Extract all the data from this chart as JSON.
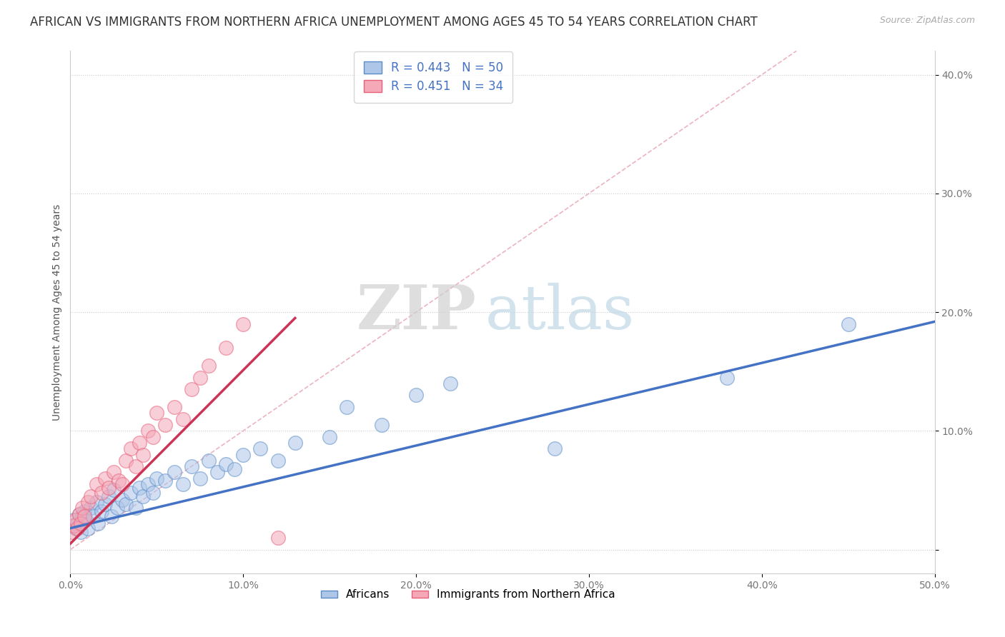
{
  "title": "AFRICAN VS IMMIGRANTS FROM NORTHERN AFRICA UNEMPLOYMENT AMONG AGES 45 TO 54 YEARS CORRELATION CHART",
  "source": "Source: ZipAtlas.com",
  "ylabel": "Unemployment Among Ages 45 to 54 years",
  "xlim": [
    0.0,
    0.5
  ],
  "ylim": [
    -0.02,
    0.42
  ],
  "xticks": [
    0.0,
    0.1,
    0.2,
    0.3,
    0.4,
    0.5
  ],
  "yticks": [
    0.0,
    0.1,
    0.2,
    0.3,
    0.4
  ],
  "xticklabels": [
    "0.0%",
    "10.0%",
    "20.0%",
    "30.0%",
    "40.0%",
    "50.0%"
  ],
  "yticklabels": [
    "",
    "10.0%",
    "20.0%",
    "30.0%",
    "40.0%"
  ],
  "legend1_label": "R = 0.443   N = 50",
  "legend2_label": "R = 0.451   N = 34",
  "legend1_color": "#aec6e8",
  "legend2_color": "#f4a8b8",
  "background_color": "#ffffff",
  "watermark_zip": "ZIP",
  "watermark_atlas": "atlas",
  "blue_color": "#aec6e8",
  "pink_color": "#f4a8b8",
  "blue_edge_color": "#5b8dc8",
  "pink_edge_color": "#e8607a",
  "blue_line_color": "#4472c4",
  "pink_line_color": "#cc3355",
  "diag_line_color": "#e8a0b0",
  "blue_scatter_x": [
    0.001,
    0.002,
    0.003,
    0.004,
    0.005,
    0.006,
    0.007,
    0.008,
    0.009,
    0.01,
    0.012,
    0.013,
    0.015,
    0.016,
    0.018,
    0.02,
    0.022,
    0.024,
    0.025,
    0.027,
    0.03,
    0.032,
    0.035,
    0.038,
    0.04,
    0.042,
    0.045,
    0.048,
    0.05,
    0.055,
    0.06,
    0.065,
    0.07,
    0.075,
    0.08,
    0.085,
    0.09,
    0.095,
    0.1,
    0.11,
    0.12,
    0.13,
    0.15,
    0.16,
    0.18,
    0.2,
    0.22,
    0.28,
    0.38,
    0.45
  ],
  "blue_scatter_y": [
    0.02,
    0.025,
    0.018,
    0.022,
    0.03,
    0.015,
    0.028,
    0.032,
    0.025,
    0.018,
    0.035,
    0.028,
    0.04,
    0.022,
    0.032,
    0.038,
    0.045,
    0.028,
    0.05,
    0.035,
    0.042,
    0.038,
    0.048,
    0.035,
    0.052,
    0.045,
    0.055,
    0.048,
    0.06,
    0.058,
    0.065,
    0.055,
    0.07,
    0.06,
    0.075,
    0.065,
    0.072,
    0.068,
    0.08,
    0.085,
    0.075,
    0.09,
    0.095,
    0.12,
    0.105,
    0.13,
    0.14,
    0.085,
    0.145,
    0.19
  ],
  "pink_scatter_x": [
    0.001,
    0.002,
    0.003,
    0.004,
    0.005,
    0.006,
    0.007,
    0.008,
    0.01,
    0.012,
    0.015,
    0.018,
    0.02,
    0.022,
    0.025,
    0.028,
    0.03,
    0.032,
    0.035,
    0.038,
    0.04,
    0.042,
    0.045,
    0.048,
    0.05,
    0.055,
    0.06,
    0.065,
    0.07,
    0.075,
    0.08,
    0.09,
    0.1,
    0.12
  ],
  "pink_scatter_y": [
    0.015,
    0.02,
    0.025,
    0.018,
    0.03,
    0.022,
    0.035,
    0.028,
    0.04,
    0.045,
    0.055,
    0.048,
    0.06,
    0.052,
    0.065,
    0.058,
    0.055,
    0.075,
    0.085,
    0.07,
    0.09,
    0.08,
    0.1,
    0.095,
    0.115,
    0.105,
    0.12,
    0.11,
    0.135,
    0.145,
    0.155,
    0.17,
    0.19,
    0.01
  ],
  "blue_line_x0": 0.0,
  "blue_line_y0": 0.018,
  "blue_line_x1": 0.5,
  "blue_line_y1": 0.192,
  "pink_line_x0": 0.0,
  "pink_line_y0": 0.005,
  "pink_line_x1": 0.13,
  "pink_line_y1": 0.195,
  "title_fontsize": 12,
  "axis_fontsize": 10,
  "tick_fontsize": 10,
  "legend_fontsize": 12
}
